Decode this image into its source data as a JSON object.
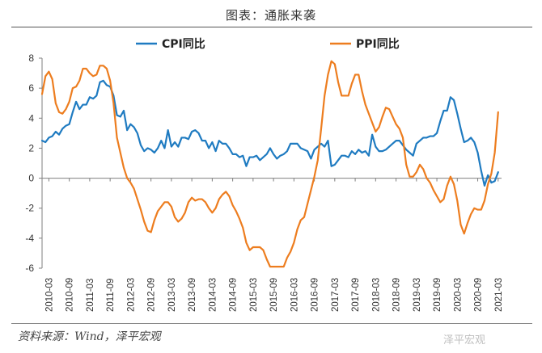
{
  "header": {
    "title": "图表：通胀来袭"
  },
  "footer": {
    "source": "资料来源：Wind，泽平宏观",
    "watermark": "泽平宏观"
  },
  "colors": {
    "cpi": "#1f7bc1",
    "ppi": "#ed7d1f",
    "axis": "#7f7f7f",
    "text": "#333333"
  },
  "chart_data": {
    "type": "line",
    "title": "",
    "xlabel": "",
    "ylabel": "",
    "ylim": [
      -6,
      8
    ],
    "yticks": [
      -6,
      -4,
      -2,
      0,
      2,
      4,
      6,
      8
    ],
    "x_tick_labels": [
      "2010-03",
      "2010-09",
      "2011-03",
      "2011-09",
      "2012-03",
      "2012-09",
      "2013-03",
      "2013-09",
      "2014-03",
      "2014-09",
      "2015-03",
      "2015-09",
      "2016-03",
      "2016-09",
      "2017-03",
      "2017-09",
      "2018-03",
      "2018-09",
      "2019-03",
      "2019-09",
      "2020-03",
      "2020-09",
      "2021-03"
    ],
    "x_start": "2010-01",
    "x_end": "2021-04",
    "grid": false,
    "legend_position": "top",
    "series": [
      {
        "name": "CPI同比",
        "color": "#1f7bc1",
        "points": [
          [
            "2010-01",
            2.5
          ],
          [
            "2010-02",
            2.4
          ],
          [
            "2010-03",
            2.7
          ],
          [
            "2010-04",
            2.8
          ],
          [
            "2010-05",
            3.1
          ],
          [
            "2010-06",
            2.9
          ],
          [
            "2010-07",
            3.3
          ],
          [
            "2010-08",
            3.5
          ],
          [
            "2010-09",
            3.6
          ],
          [
            "2010-10",
            4.4
          ],
          [
            "2010-11",
            5.1
          ],
          [
            "2010-12",
            4.6
          ],
          [
            "2011-01",
            4.9
          ],
          [
            "2011-02",
            4.9
          ],
          [
            "2011-03",
            5.4
          ],
          [
            "2011-04",
            5.3
          ],
          [
            "2011-05",
            5.5
          ],
          [
            "2011-06",
            6.4
          ],
          [
            "2011-07",
            6.5
          ],
          [
            "2011-08",
            6.2
          ],
          [
            "2011-09",
            6.1
          ],
          [
            "2011-10",
            5.5
          ],
          [
            "2011-11",
            4.2
          ],
          [
            "2011-12",
            4.1
          ],
          [
            "2012-01",
            4.5
          ],
          [
            "2012-02",
            3.2
          ],
          [
            "2012-03",
            3.6
          ],
          [
            "2012-04",
            3.4
          ],
          [
            "2012-05",
            3.0
          ],
          [
            "2012-06",
            2.2
          ],
          [
            "2012-07",
            1.8
          ],
          [
            "2012-08",
            2.0
          ],
          [
            "2012-09",
            1.9
          ],
          [
            "2012-10",
            1.7
          ],
          [
            "2012-11",
            2.0
          ],
          [
            "2012-12",
            2.5
          ],
          [
            "2013-01",
            2.0
          ],
          [
            "2013-02",
            3.2
          ],
          [
            "2013-03",
            2.1
          ],
          [
            "2013-04",
            2.4
          ],
          [
            "2013-05",
            2.1
          ],
          [
            "2013-06",
            2.7
          ],
          [
            "2013-07",
            2.7
          ],
          [
            "2013-08",
            2.6
          ],
          [
            "2013-09",
            3.1
          ],
          [
            "2013-10",
            3.2
          ],
          [
            "2013-11",
            3.0
          ],
          [
            "2013-12",
            2.5
          ],
          [
            "2014-01",
            2.5
          ],
          [
            "2014-02",
            2.0
          ],
          [
            "2014-03",
            2.4
          ],
          [
            "2014-04",
            1.8
          ],
          [
            "2014-05",
            2.5
          ],
          [
            "2014-06",
            2.3
          ],
          [
            "2014-07",
            2.3
          ],
          [
            "2014-08",
            2.0
          ],
          [
            "2014-09",
            1.6
          ],
          [
            "2014-10",
            1.6
          ],
          [
            "2014-11",
            1.4
          ],
          [
            "2014-12",
            1.5
          ],
          [
            "2015-01",
            0.8
          ],
          [
            "2015-02",
            1.4
          ],
          [
            "2015-03",
            1.4
          ],
          [
            "2015-04",
            1.5
          ],
          [
            "2015-05",
            1.2
          ],
          [
            "2015-06",
            1.4
          ],
          [
            "2015-07",
            1.6
          ],
          [
            "2015-08",
            2.0
          ],
          [
            "2015-09",
            1.6
          ],
          [
            "2015-10",
            1.3
          ],
          [
            "2015-11",
            1.5
          ],
          [
            "2015-12",
            1.6
          ],
          [
            "2016-01",
            1.8
          ],
          [
            "2016-02",
            2.3
          ],
          [
            "2016-03",
            2.3
          ],
          [
            "2016-04",
            2.3
          ],
          [
            "2016-05",
            2.0
          ],
          [
            "2016-06",
            1.9
          ],
          [
            "2016-07",
            1.8
          ],
          [
            "2016-08",
            1.3
          ],
          [
            "2016-09",
            1.9
          ],
          [
            "2016-10",
            2.1
          ],
          [
            "2016-11",
            2.3
          ],
          [
            "2016-12",
            2.1
          ],
          [
            "2017-01",
            2.5
          ],
          [
            "2017-02",
            0.8
          ],
          [
            "2017-03",
            0.9
          ],
          [
            "2017-04",
            1.2
          ],
          [
            "2017-05",
            1.5
          ],
          [
            "2017-06",
            1.5
          ],
          [
            "2017-07",
            1.4
          ],
          [
            "2017-08",
            1.8
          ],
          [
            "2017-09",
            1.6
          ],
          [
            "2017-10",
            1.9
          ],
          [
            "2017-11",
            1.7
          ],
          [
            "2017-12",
            1.8
          ],
          [
            "2018-01",
            1.5
          ],
          [
            "2018-02",
            2.9
          ],
          [
            "2018-03",
            2.1
          ],
          [
            "2018-04",
            1.8
          ],
          [
            "2018-05",
            1.8
          ],
          [
            "2018-06",
            1.9
          ],
          [
            "2018-07",
            2.1
          ],
          [
            "2018-08",
            2.3
          ],
          [
            "2018-09",
            2.5
          ],
          [
            "2018-10",
            2.5
          ],
          [
            "2018-11",
            2.2
          ],
          [
            "2018-12",
            1.9
          ],
          [
            "2019-01",
            1.7
          ],
          [
            "2019-02",
            1.5
          ],
          [
            "2019-03",
            2.3
          ],
          [
            "2019-04",
            2.5
          ],
          [
            "2019-05",
            2.7
          ],
          [
            "2019-06",
            2.7
          ],
          [
            "2019-07",
            2.8
          ],
          [
            "2019-08",
            2.8
          ],
          [
            "2019-09",
            3.0
          ],
          [
            "2019-10",
            3.8
          ],
          [
            "2019-11",
            4.5
          ],
          [
            "2019-12",
            4.5
          ],
          [
            "2020-01",
            5.4
          ],
          [
            "2020-02",
            5.2
          ],
          [
            "2020-03",
            4.3
          ],
          [
            "2020-04",
            3.3
          ],
          [
            "2020-05",
            2.4
          ],
          [
            "2020-06",
            2.5
          ],
          [
            "2020-07",
            2.7
          ],
          [
            "2020-08",
            2.4
          ],
          [
            "2020-09",
            1.7
          ],
          [
            "2020-10",
            0.5
          ],
          [
            "2020-11",
            -0.5
          ],
          [
            "2020-12",
            0.2
          ],
          [
            "2021-01",
            -0.3
          ],
          [
            "2021-02",
            -0.2
          ],
          [
            "2021-03",
            0.4
          ]
        ]
      },
      {
        "name": "PPI同比",
        "color": "#ed7d1f",
        "points": [
          [
            "2010-01",
            5.6
          ],
          [
            "2010-02",
            6.8
          ],
          [
            "2010-03",
            7.1
          ],
          [
            "2010-04",
            6.6
          ],
          [
            "2010-05",
            5.0
          ],
          [
            "2010-06",
            4.4
          ],
          [
            "2010-07",
            4.3
          ],
          [
            "2010-08",
            4.6
          ],
          [
            "2010-09",
            5.1
          ],
          [
            "2010-10",
            6.0
          ],
          [
            "2010-11",
            6.1
          ],
          [
            "2010-12",
            6.5
          ],
          [
            "2011-01",
            7.3
          ],
          [
            "2011-02",
            7.3
          ],
          [
            "2011-03",
            7.0
          ],
          [
            "2011-04",
            6.8
          ],
          [
            "2011-05",
            6.9
          ],
          [
            "2011-06",
            7.5
          ],
          [
            "2011-07",
            7.5
          ],
          [
            "2011-08",
            7.3
          ],
          [
            "2011-09",
            6.5
          ],
          [
            "2011-10",
            5.0
          ],
          [
            "2011-11",
            2.7
          ],
          [
            "2011-12",
            1.7
          ],
          [
            "2012-01",
            0.7
          ],
          [
            "2012-02",
            0.0
          ],
          [
            "2012-03",
            -0.3
          ],
          [
            "2012-04",
            -0.7
          ],
          [
            "2012-05",
            -1.4
          ],
          [
            "2012-06",
            -2.1
          ],
          [
            "2012-07",
            -2.9
          ],
          [
            "2012-08",
            -3.5
          ],
          [
            "2012-09",
            -3.6
          ],
          [
            "2012-10",
            -2.8
          ],
          [
            "2012-11",
            -2.2
          ],
          [
            "2012-12",
            -1.9
          ],
          [
            "2013-01",
            -1.6
          ],
          [
            "2013-02",
            -1.6
          ],
          [
            "2013-03",
            -1.9
          ],
          [
            "2013-04",
            -2.6
          ],
          [
            "2013-05",
            -2.9
          ],
          [
            "2013-06",
            -2.7
          ],
          [
            "2013-07",
            -2.3
          ],
          [
            "2013-08",
            -1.6
          ],
          [
            "2013-09",
            -1.3
          ],
          [
            "2013-10",
            -1.5
          ],
          [
            "2013-11",
            -1.4
          ],
          [
            "2013-12",
            -1.4
          ],
          [
            "2014-01",
            -1.6
          ],
          [
            "2014-02",
            -2.0
          ],
          [
            "2014-03",
            -2.3
          ],
          [
            "2014-04",
            -2.0
          ],
          [
            "2014-05",
            -1.4
          ],
          [
            "2014-06",
            -1.1
          ],
          [
            "2014-07",
            -0.9
          ],
          [
            "2014-08",
            -1.2
          ],
          [
            "2014-09",
            -1.8
          ],
          [
            "2014-10",
            -2.2
          ],
          [
            "2014-11",
            -2.7
          ],
          [
            "2014-12",
            -3.3
          ],
          [
            "2015-01",
            -4.3
          ],
          [
            "2015-02",
            -4.8
          ],
          [
            "2015-03",
            -4.6
          ],
          [
            "2015-04",
            -4.6
          ],
          [
            "2015-05",
            -4.6
          ],
          [
            "2015-06",
            -4.8
          ],
          [
            "2015-07",
            -5.4
          ],
          [
            "2015-08",
            -5.9
          ],
          [
            "2015-09",
            -5.9
          ],
          [
            "2015-10",
            -5.9
          ],
          [
            "2015-11",
            -5.9
          ],
          [
            "2015-12",
            -5.9
          ],
          [
            "2016-01",
            -5.3
          ],
          [
            "2016-02",
            -4.9
          ],
          [
            "2016-03",
            -4.3
          ],
          [
            "2016-04",
            -3.4
          ],
          [
            "2016-05",
            -2.8
          ],
          [
            "2016-06",
            -2.6
          ],
          [
            "2016-07",
            -1.7
          ],
          [
            "2016-08",
            -0.8
          ],
          [
            "2016-09",
            0.1
          ],
          [
            "2016-10",
            1.2
          ],
          [
            "2016-11",
            3.3
          ],
          [
            "2016-12",
            5.5
          ],
          [
            "2017-01",
            6.9
          ],
          [
            "2017-02",
            7.8
          ],
          [
            "2017-03",
            7.6
          ],
          [
            "2017-04",
            6.4
          ],
          [
            "2017-05",
            5.5
          ],
          [
            "2017-06",
            5.5
          ],
          [
            "2017-07",
            5.5
          ],
          [
            "2017-08",
            6.3
          ],
          [
            "2017-09",
            6.9
          ],
          [
            "2017-10",
            6.9
          ],
          [
            "2017-11",
            5.8
          ],
          [
            "2017-12",
            4.9
          ],
          [
            "2018-01",
            4.3
          ],
          [
            "2018-02",
            3.7
          ],
          [
            "2018-03",
            3.1
          ],
          [
            "2018-04",
            3.4
          ],
          [
            "2018-05",
            4.1
          ],
          [
            "2018-06",
            4.7
          ],
          [
            "2018-07",
            4.6
          ],
          [
            "2018-08",
            4.1
          ],
          [
            "2018-09",
            3.6
          ],
          [
            "2018-10",
            3.3
          ],
          [
            "2018-11",
            2.7
          ],
          [
            "2018-12",
            0.9
          ],
          [
            "2019-01",
            0.1
          ],
          [
            "2019-02",
            0.1
          ],
          [
            "2019-03",
            0.4
          ],
          [
            "2019-04",
            0.9
          ],
          [
            "2019-05",
            0.6
          ],
          [
            "2019-06",
            0.0
          ],
          [
            "2019-07",
            -0.3
          ],
          [
            "2019-08",
            -0.8
          ],
          [
            "2019-09",
            -1.2
          ],
          [
            "2019-10",
            -1.6
          ],
          [
            "2019-11",
            -1.4
          ],
          [
            "2019-12",
            -0.5
          ],
          [
            "2020-01",
            0.1
          ],
          [
            "2020-02",
            -0.4
          ],
          [
            "2020-03",
            -1.5
          ],
          [
            "2020-04",
            -3.1
          ],
          [
            "2020-05",
            -3.7
          ],
          [
            "2020-06",
            -3.0
          ],
          [
            "2020-07",
            -2.4
          ],
          [
            "2020-08",
            -2.0
          ],
          [
            "2020-09",
            -2.1
          ],
          [
            "2020-10",
            -2.1
          ],
          [
            "2020-11",
            -1.5
          ],
          [
            "2020-12",
            -0.4
          ],
          [
            "2021-01",
            0.3
          ],
          [
            "2021-02",
            1.7
          ],
          [
            "2021-03",
            4.4
          ]
        ]
      }
    ]
  }
}
